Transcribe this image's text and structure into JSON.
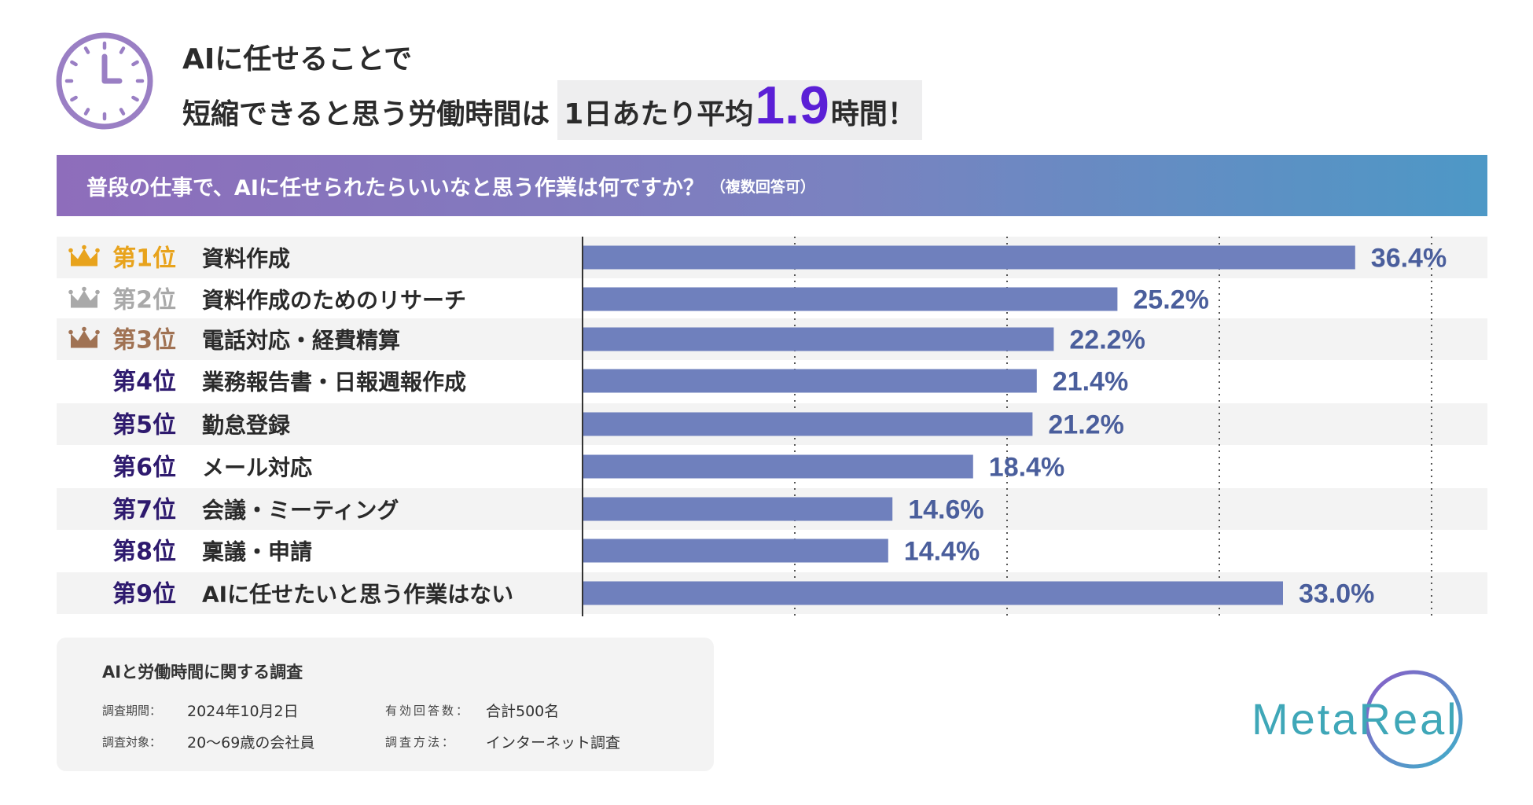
{
  "headline": {
    "line1": "AIに任せることで",
    "line2_pre": "短縮できると思う労働時間は",
    "line2_hl_pre": "1日あたり平均",
    "line2_big": "1.9",
    "line2_post": "時間！"
  },
  "question": {
    "text": "普段の仕事で、AIに任せられたらいいなと思う作業は何ですか？",
    "note": "（複数回答可）"
  },
  "colors": {
    "bar": "#6f80bd",
    "value_text": "#4a5e9c",
    "rank_text": "#2e1a6e",
    "gold": "#e8a31c",
    "silver": "#a9a9a9",
    "bronze": "#a07253",
    "row_shade": "#f3f3f3",
    "accent": "#5b1fd6"
  },
  "chart_data": {
    "type": "bar",
    "orientation": "horizontal",
    "categories": [
      "資料作成",
      "資料作成のためのリサーチ",
      "電話対応・経費精算",
      "業務報告書・日報週報作成",
      "勤怠登録",
      "メール対応",
      "会議・ミーティング",
      "稟議・申請",
      "AIに任せたいと思う作業はない"
    ],
    "ranks": [
      "第1位",
      "第2位",
      "第3位",
      "第4位",
      "第5位",
      "第6位",
      "第7位",
      "第8位",
      "第9位"
    ],
    "values": [
      36.4,
      25.2,
      22.2,
      21.4,
      21.2,
      18.4,
      14.6,
      14.4,
      33.0
    ],
    "value_labels": [
      "36.4%",
      "25.2%",
      "22.2%",
      "21.4%",
      "21.2%",
      "18.4%",
      "14.6%",
      "14.4%",
      "33.0%"
    ],
    "xlim": [
      0,
      40
    ],
    "gridlines": [
      10,
      20,
      30,
      40
    ],
    "unit": "%"
  },
  "survey": {
    "title": "AIと労働時間に関する調査",
    "period_label": "調査期間：",
    "period_value": "2024年10月2日",
    "responses_label": "有効回答数：",
    "responses_value": "合計500名",
    "target_label": "調査対象：",
    "target_value": "20〜69歳の会社員",
    "method_label": "調査方法：",
    "method_value": "インターネット調査"
  },
  "logo": {
    "text": "MetaReal"
  }
}
